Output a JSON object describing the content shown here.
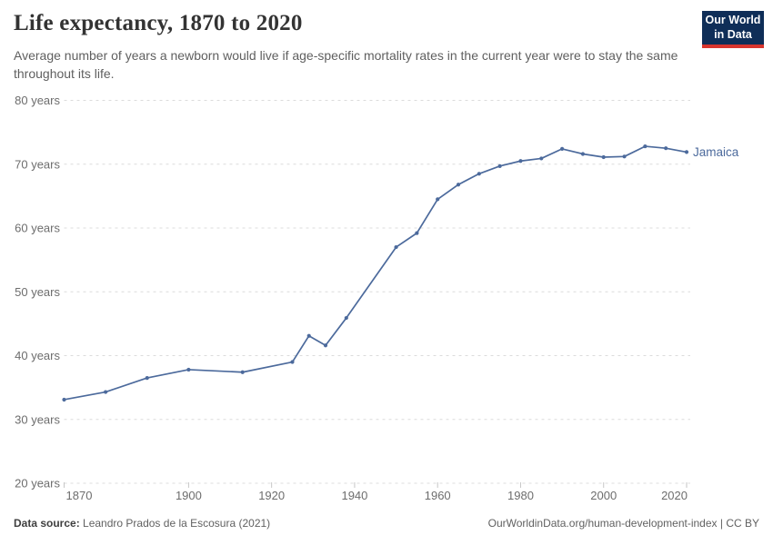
{
  "header": {
    "title": "Life expectancy, 1870 to 2020",
    "subtitle": "Average number of years a newborn would live if age-specific mortality rates in the current year were to stay the same throughout its life.",
    "logo": {
      "line1": "Our World",
      "line2": "in Data",
      "bg_color": "#0f2e58",
      "stripe_color": "#d8352e"
    }
  },
  "chart_data": {
    "type": "line",
    "title": "Life expectancy, 1870 to 2020",
    "subtitle": "Average number of years a newborn would live if age-specific mortality rates in the current year were to stay the same throughout its life.",
    "xlabel": "",
    "ylabel": "",
    "xlim": [
      1870,
      2020
    ],
    "ylim": [
      20,
      80
    ],
    "xticks": [
      1870,
      1900,
      1920,
      1940,
      1960,
      1980,
      2000,
      2020
    ],
    "yticks": [
      20,
      30,
      40,
      50,
      60,
      70,
      80
    ],
    "ytick_suffix": " years",
    "grid": "horizontal-dashed",
    "legend_position": "end-of-line-label",
    "series": [
      {
        "name": "Jamaica",
        "color": "#4c6a9c",
        "x": [
          1870,
          1880,
          1890,
          1900,
          1913,
          1925,
          1929,
          1933,
          1938,
          1950,
          1955,
          1960,
          1965,
          1970,
          1975,
          1980,
          1985,
          1990,
          1995,
          2000,
          2005,
          2010,
          2015,
          2020
        ],
        "values": [
          33.1,
          34.3,
          36.5,
          37.8,
          37.4,
          39.0,
          43.1,
          41.6,
          45.9,
          57.0,
          59.2,
          64.5,
          66.8,
          68.5,
          69.7,
          70.5,
          70.9,
          72.4,
          71.6,
          71.1,
          71.2,
          72.8,
          72.5,
          71.9
        ]
      }
    ]
  },
  "footer": {
    "datasource_label": "Data source:",
    "datasource_value": " Leandro Prados de la Escosura (2021)",
    "link": "OurWorldinData.org/human-development-index | CC BY"
  }
}
